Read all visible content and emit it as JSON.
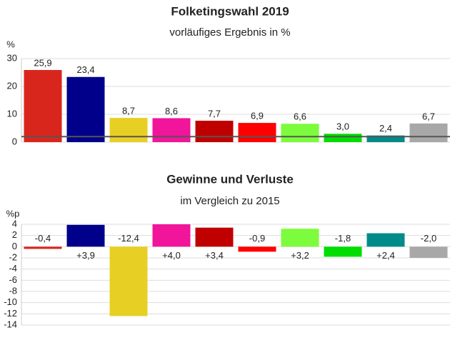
{
  "chart_data": [
    {
      "type": "bar",
      "title": "Folketingswahl 2019",
      "subtitle": "vorläufiges Ergebnis in %",
      "y_label": "%",
      "values": [
        25.9,
        23.4,
        8.7,
        8.6,
        7.7,
        6.9,
        6.6,
        3.0,
        2.4,
        6.7
      ],
      "value_labels": [
        "25,9",
        "23,4",
        "8,7",
        "8,6",
        "7,7",
        "6,9",
        "6,6",
        "3,0",
        "2,4",
        "6,7"
      ],
      "colors": [
        "#d9261c",
        "#00008b",
        "#e8cf24",
        "#f0159a",
        "#c00000",
        "#ff0000",
        "#7cfc3c",
        "#00dd00",
        "#008b8b",
        "#a8a8a8"
      ],
      "ylim": [
        0,
        30
      ],
      "yticks": [
        0,
        10,
        20,
        30
      ],
      "grid": true,
      "threshold": 2
    },
    {
      "type": "bar",
      "title": "Gewinne und Verluste",
      "subtitle": "im Vergleich zu 2015",
      "y_label": "%p",
      "values": [
        -0.4,
        3.9,
        -12.4,
        4.0,
        3.4,
        -0.9,
        3.2,
        -1.8,
        2.4,
        -2.0
      ],
      "value_labels": [
        "-0,4",
        "+3,9",
        "-12,4",
        "+4,0",
        "+3,4",
        "-0,9",
        "+3,2",
        "-1,8",
        "+2,4",
        "-2,0"
      ],
      "colors": [
        "#d9261c",
        "#00008b",
        "#e8cf24",
        "#f0159a",
        "#c00000",
        "#ff0000",
        "#7cfc3c",
        "#00dd00",
        "#008b8b",
        "#a8a8a8"
      ],
      "ylim": [
        -14,
        4
      ],
      "yticks": [
        -14,
        -12,
        -10,
        -8,
        -6,
        -4,
        -2,
        0,
        2,
        4
      ],
      "grid": true
    }
  ]
}
